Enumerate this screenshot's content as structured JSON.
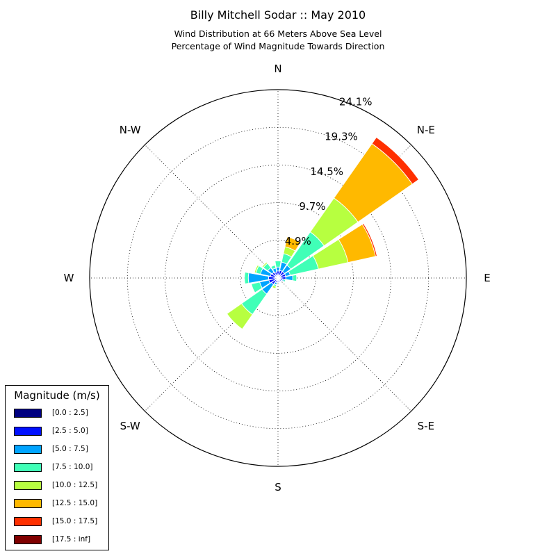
{
  "title": "Billy Mitchell Sodar :: May 2010",
  "subtitle_line1": "Wind Distribution at 66 Meters Above Sea Level",
  "subtitle_line2": "Percentage of Wind Magnitude Towards Direction",
  "legend": {
    "title": "Magnitude (m/s)",
    "entries": [
      {
        "label": "[0.0 : 2.5]",
        "color": "#000080"
      },
      {
        "label": "[2.5 : 5.0]",
        "color": "#0010ff"
      },
      {
        "label": "[5.0 : 7.5]",
        "color": "#00a4ff"
      },
      {
        "label": "[7.5 : 10.0]",
        "color": "#40ffb7"
      },
      {
        "label": "[10.0 : 12.5]",
        "color": "#b7ff40"
      },
      {
        "label": "[12.5 : 15.0]",
        "color": "#ffb900"
      },
      {
        "label": "[15.0 : 17.5]",
        "color": "#ff3000"
      },
      {
        "label": "[17.5 : inf]",
        "color": "#800000"
      }
    ]
  },
  "chart_data": {
    "type": "bar",
    "polar": true,
    "title": "Billy Mitchell Sodar :: May 2010",
    "subtitle": [
      "Wind Distribution at 66 Meters Above Sea Level",
      "Percentage of Wind Magnitude Towards Direction"
    ],
    "direction_labels": [
      "N",
      "N-E",
      "E",
      "S-E",
      "S",
      "S-W",
      "W",
      "N-W"
    ],
    "radial_tick_labels": [
      "4.9%",
      "9.7%",
      "14.5%",
      "19.3%",
      "24.1%"
    ],
    "radial_ticks": [
      4.83,
      9.65,
      14.48,
      19.3,
      24.13
    ],
    "rmax": 24.13,
    "grid": true,
    "legend_position": "bottom-left",
    "bins": [
      "[0.0 : 2.5]",
      "[2.5 : 5.0]",
      "[5.0 : 7.5]",
      "[7.5 : 10.0]",
      "[10.0 : 12.5]",
      "[12.5 : 15.0]",
      "[15.0 : 17.5]",
      "[17.5 : inf]"
    ],
    "sector_width_deg": 22.5,
    "directions_deg": [
      0,
      22.5,
      45,
      67.5,
      90,
      112.5,
      135,
      157.5,
      180,
      202.5,
      225,
      247.5,
      270,
      292.5,
      315,
      337.5
    ],
    "cumulative_percent": [
      [
        0.4,
        0.9,
        1.4,
        2.2,
        2.2,
        2.2,
        2.2,
        2.2
      ],
      [
        0.4,
        1.0,
        2.1,
        3.2,
        4.1,
        5.4,
        5.4,
        5.4
      ],
      [
        0.4,
        1.0,
        2.0,
        7.2,
        12.5,
        21.0,
        22.0,
        22.0
      ],
      [
        0.4,
        1.0,
        1.6,
        5.3,
        9.2,
        12.8,
        13.0,
        13.0
      ],
      [
        0.4,
        1.0,
        1.9,
        2.4,
        2.4,
        2.4,
        2.4,
        2.4
      ],
      [
        0.3,
        0.6,
        0.8,
        1.0,
        1.0,
        1.0,
        1.0,
        1.0
      ],
      [
        0.3,
        0.5,
        0.6,
        0.6,
        0.6,
        0.6,
        0.6,
        0.6
      ],
      [
        0.3,
        0.5,
        0.6,
        0.6,
        0.6,
        0.6,
        0.6,
        0.6
      ],
      [
        0.3,
        0.5,
        0.6,
        0.6,
        0.6,
        0.6,
        0.6,
        0.6
      ],
      [
        0.3,
        0.6,
        0.9,
        1.1,
        1.4,
        1.4,
        1.4,
        1.4
      ],
      [
        0.3,
        1.0,
        2.5,
        5.7,
        8.0,
        8.0,
        8.0,
        8.0
      ],
      [
        0.4,
        1.2,
        2.4,
        3.5,
        3.5,
        3.5,
        3.5,
        3.5
      ],
      [
        0.4,
        1.2,
        3.8,
        4.3,
        4.3,
        4.3,
        4.3,
        4.3
      ],
      [
        0.4,
        1.0,
        2.3,
        2.9,
        3.1,
        3.1,
        3.1,
        3.1
      ],
      [
        0.4,
        0.9,
        1.6,
        2.3,
        2.5,
        2.5,
        2.5,
        2.5
      ],
      [
        0.4,
        0.8,
        1.3,
        1.7,
        1.7,
        1.7,
        1.7,
        1.7
      ]
    ]
  }
}
